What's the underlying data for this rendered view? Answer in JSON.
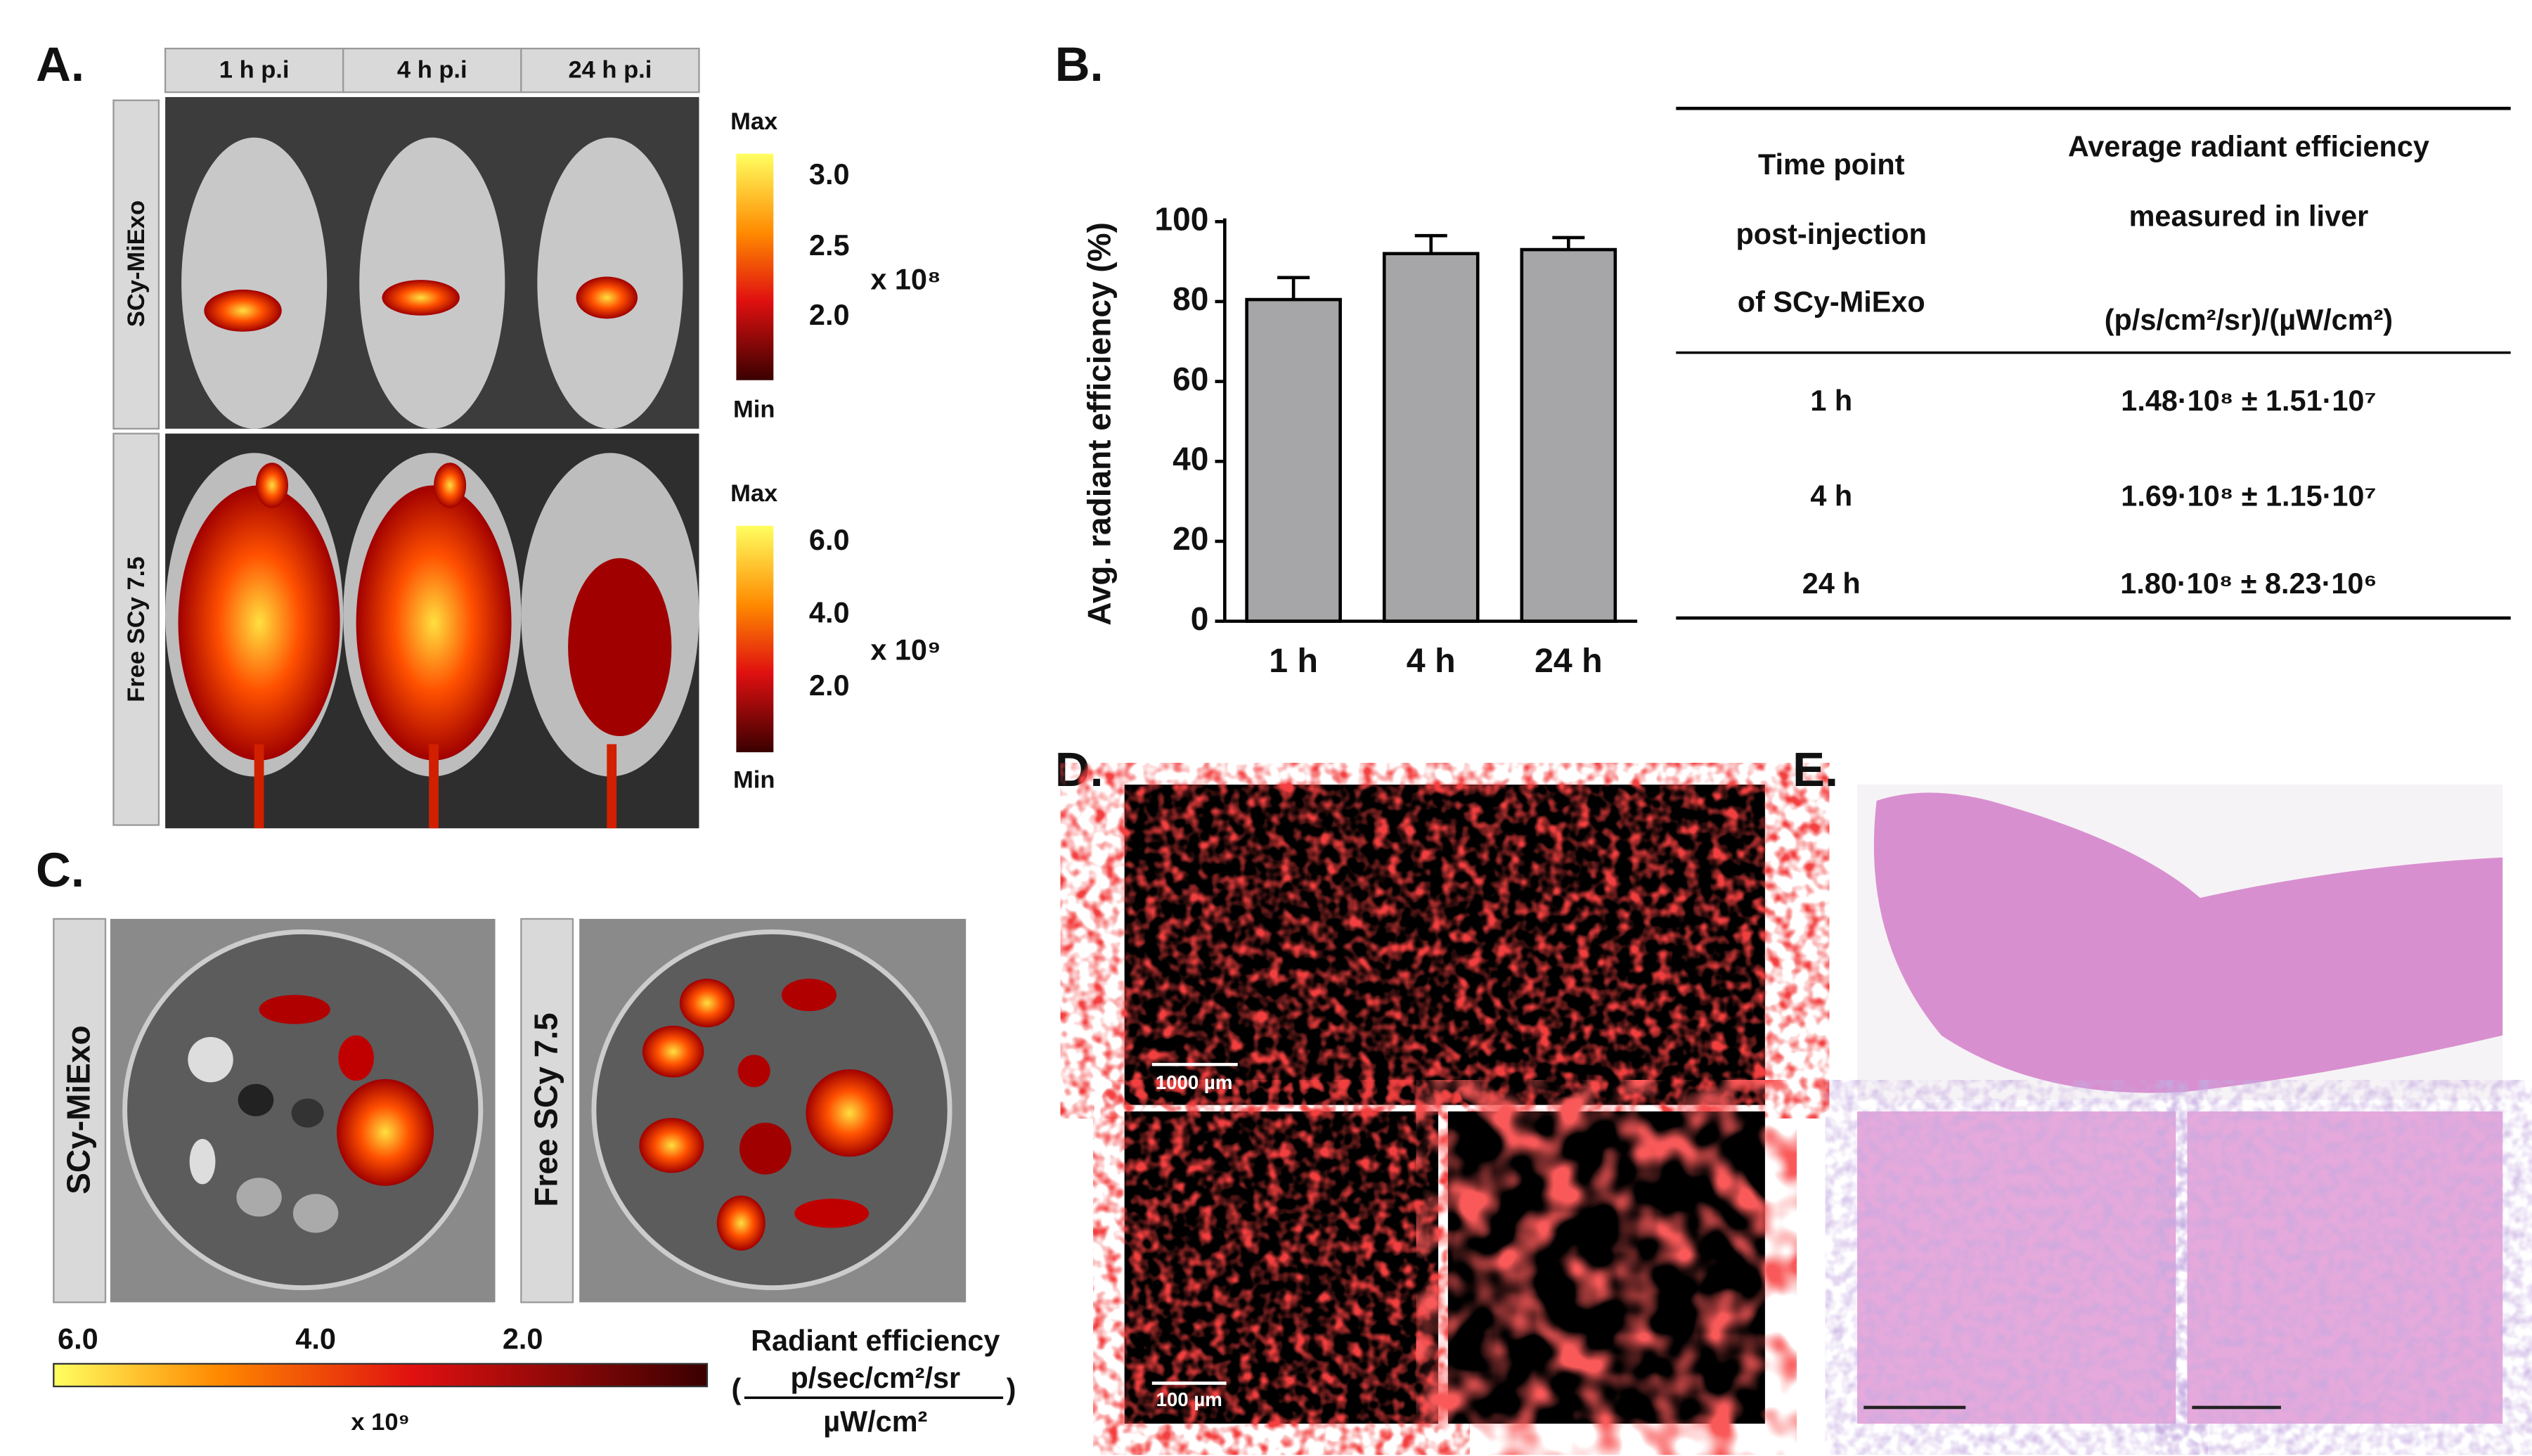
{
  "panelA": {
    "label": "A.",
    "headers": [
      "1 h p.i",
      "4 h p.i",
      "24 h p.i"
    ],
    "rows": [
      "SCy-MiExo",
      "Free SCy 7.5"
    ],
    "scale1": {
      "max": "Max",
      "min": "Min",
      "ticks": [
        "3.0",
        "2.5",
        "2.0"
      ],
      "multiplier": "x 10⁸"
    },
    "scale2": {
      "max": "Max",
      "min": "Min",
      "ticks": [
        "6.0",
        "4.0",
        "2.0"
      ],
      "multiplier": "x 10⁹"
    }
  },
  "panelB": {
    "label": "B.",
    "table": {
      "header": [
        [
          "Time point",
          "post-injection",
          "of SCy-MiExo"
        ],
        [
          "Average radiant efficiency",
          "measured in liver",
          "(p/s/cm²/sr)/(µW/cm²)"
        ]
      ],
      "rows": [
        [
          "1 h",
          "1.48·10⁸ ± 1.51·10⁷"
        ],
        [
          "4 h",
          "1.69·10⁸ ± 1.15·10⁷"
        ],
        [
          "24 h",
          "1.80·10⁸ ± 8.23·10⁶"
        ]
      ]
    }
  },
  "chart_data": {
    "type": "bar",
    "y_label": "Avg. radiant efficiency (%)",
    "categories": [
      "1 h",
      "4 h",
      "24 h"
    ],
    "values": [
      80.5,
      92,
      93
    ],
    "errors": [
      5.5,
      4.5,
      3
    ],
    "color": "#a6a6a9",
    "ylim": [
      0,
      100
    ],
    "yticks": [
      0,
      20,
      40,
      60,
      80,
      100
    ]
  },
  "panelC": {
    "label": "C.",
    "rows": [
      "SCy-MiExo",
      "Free SCy 7.5"
    ],
    "ticks": [
      "6.0",
      "4.0",
      "2.0"
    ],
    "multiplier": "x 10⁹",
    "unit_title": "Radiant efficiency",
    "open": "(",
    "numerator": "p/sec/cm²/sr",
    "denominator": "µW/cm²",
    "close": ")"
  },
  "panelD": {
    "label": "D.",
    "scale_large": "1000 µm",
    "scale_small": "100 µm"
  },
  "panelE": {
    "label": "E."
  }
}
